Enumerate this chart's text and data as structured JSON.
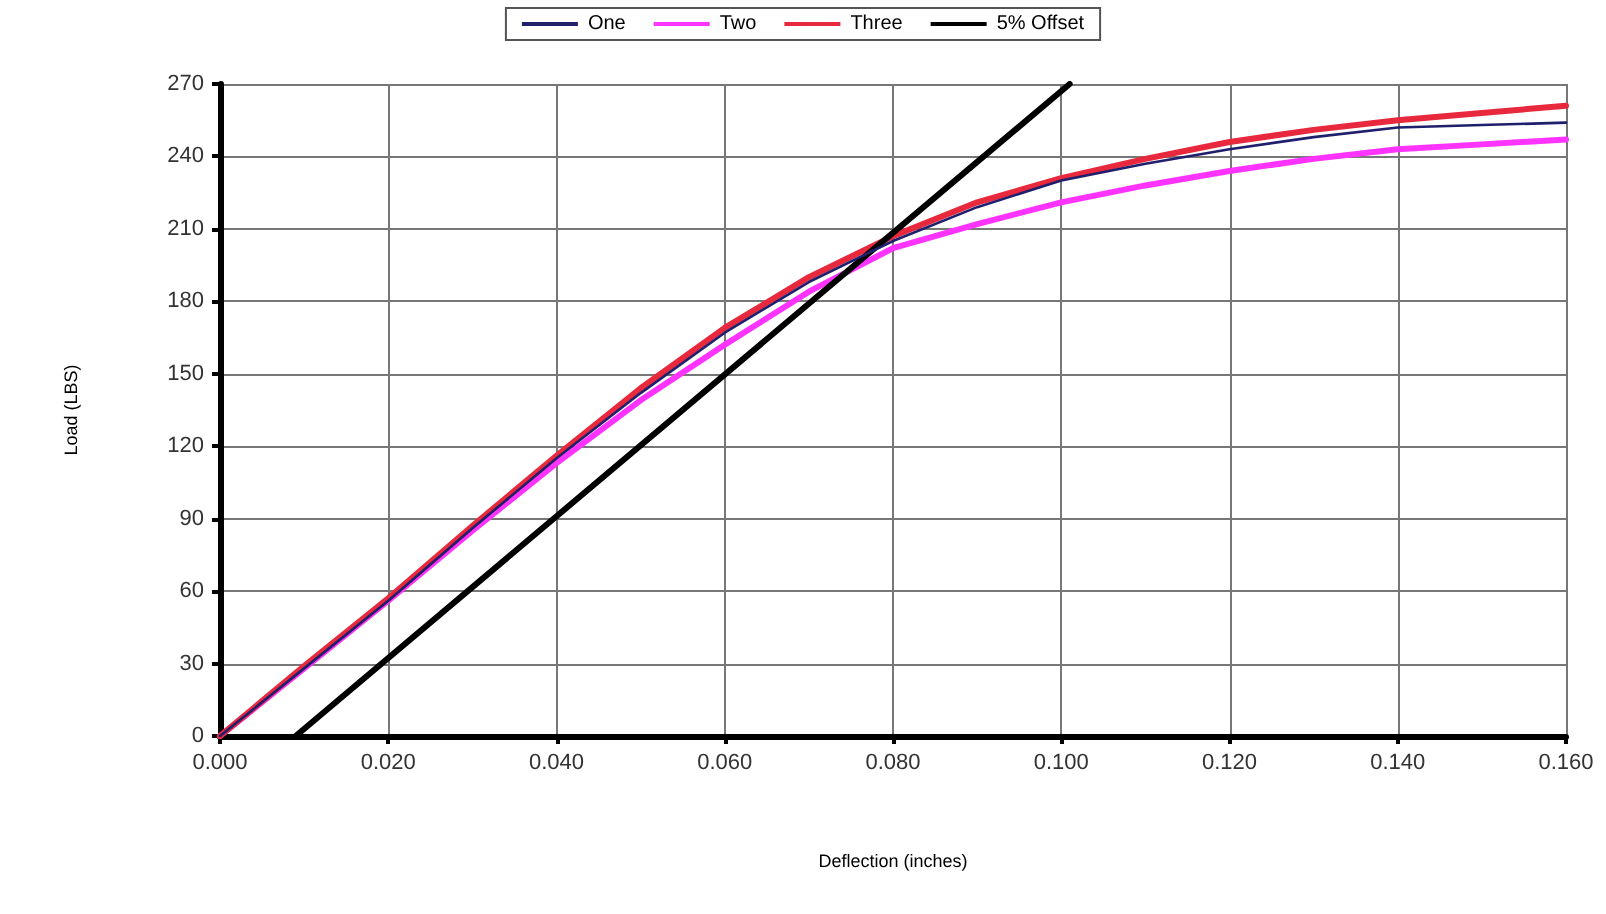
{
  "chart_data": {
    "type": "line",
    "xlabel": "Deflection (inches)",
    "ylabel": "Load (LBS)",
    "xlim": [
      0,
      0.16
    ],
    "xticks": [
      {
        "value": 0,
        "label": "0.000"
      },
      {
        "value": 0.02,
        "label": "0.020"
      },
      {
        "value": 0.04,
        "label": "0.040"
      },
      {
        "value": 0.06,
        "label": "0.060"
      },
      {
        "value": 0.08,
        "label": "0.080"
      },
      {
        "value": 0.1,
        "label": "0.100"
      },
      {
        "value": 0.12,
        "label": "0.120"
      },
      {
        "value": 0.14,
        "label": "0.140"
      },
      {
        "value": 0.16,
        "label": "0.160"
      }
    ],
    "ylim": [
      0,
      270
    ],
    "yticks": [
      0,
      30,
      60,
      90,
      120,
      150,
      180,
      210,
      240,
      270
    ],
    "grid": true,
    "legend": "top",
    "marker": "none",
    "line_style": "solid",
    "series": [
      {
        "name": "One",
        "color": "#1f1f6e",
        "x": [
          0,
          0.01,
          0.02,
          0.03,
          0.04,
          0.05,
          0.06,
          0.07,
          0.08,
          0.09,
          0.1,
          0.11,
          0.12,
          0.13,
          0.14,
          0.15,
          0.16
        ],
        "values": [
          0,
          28,
          56,
          86,
          115,
          142,
          167,
          188,
          205,
          219,
          230,
          237,
          243,
          248,
          252,
          253,
          254
        ]
      },
      {
        "name": "Two",
        "color": "#ff33ff",
        "x": [
          0,
          0.01,
          0.02,
          0.03,
          0.04,
          0.05,
          0.06,
          0.07,
          0.08,
          0.09,
          0.1,
          0.11,
          0.12,
          0.13,
          0.14,
          0.15,
          0.16
        ],
        "values": [
          0,
          28,
          56,
          85,
          113,
          139,
          162,
          184,
          202,
          212,
          221,
          228,
          234,
          239,
          243,
          245,
          247
        ]
      },
      {
        "name": "Three",
        "color": "#e8283c",
        "x": [
          0,
          0.01,
          0.02,
          0.03,
          0.04,
          0.05,
          0.06,
          0.07,
          0.08,
          0.09,
          0.1,
          0.11,
          0.12,
          0.13,
          0.14,
          0.15,
          0.16
        ],
        "values": [
          0,
          29,
          57,
          87,
          116,
          144,
          169,
          190,
          207,
          221,
          231,
          239,
          246,
          251,
          255,
          258,
          261
        ]
      },
      {
        "name": "5% Offset",
        "color": "#000000",
        "x": [
          0.009,
          0.101
        ],
        "values": [
          0,
          270
        ]
      }
    ]
  }
}
